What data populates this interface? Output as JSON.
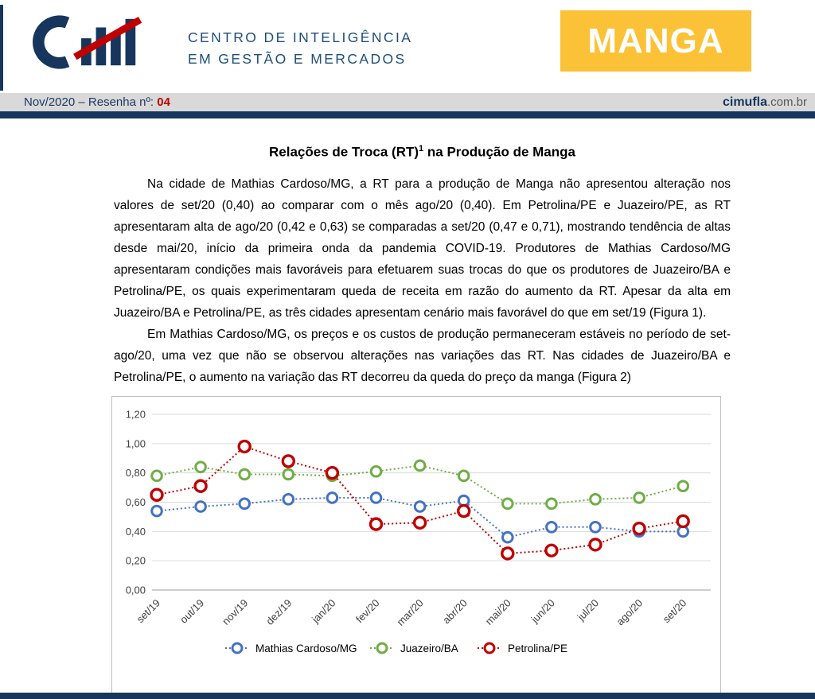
{
  "header": {
    "org_line1": "CENTRO DE INTELIGÊNCIA",
    "org_line2": "EM GESTÃO E MERCADOS",
    "badge": "MANGA",
    "navy_color": "#17365D",
    "badge_color": "#FCC237",
    "accent_red": "#C00000"
  },
  "subheader": {
    "issue_label": "Nov/2020 – Resenha nº: ",
    "issue_number": "04",
    "site_bold": "cimufla",
    "site_rest": ".com.br"
  },
  "article": {
    "title_pre": "Relações de Troca (RT)",
    "title_sup": "1",
    "title_post": " na Produção de Manga",
    "paragraphs": [
      "Na cidade de Mathias Cardoso/MG, a RT para a produção de Manga não apresentou alteração nos valores de set/20 (0,40) ao comparar com o mês ago/20 (0,40). Em Petrolina/PE e Juazeiro/PE, as RT apresentaram alta de ago/20 (0,42 e 0,63) se comparadas a set/20 (0,47 e 0,71), mostrando tendência de altas desde mai/20, início da primeira onda da pandemia COVID-19. Produtores de Mathias Cardoso/MG apresentaram condições mais favoráveis para efetuarem suas trocas do que os produtores de Juazeiro/BA e Petrolina/PE, os quais experimentaram queda de receita em razão do aumento da RT. Apesar da alta em Juazeiro/BA e Petrolina/PE, as três cidades apresentam cenário mais favorável do que em set/19 (Figura 1).",
      "Em Mathias Cardoso/MG, os preços e os custos de produção permaneceram estáveis no período de set-ago/20, uma vez que não se observou alterações nas variações das RT. Nas cidades de Juazeiro/BA e Petrolina/PE, o aumento na variação das RT decorreu da queda do preço da manga (Figura 2)"
    ]
  },
  "chart_data": {
    "type": "line",
    "title": "",
    "categories": [
      "set/19",
      "out/19",
      "nov/19",
      "dez/19",
      "jan/20",
      "fev/20",
      "mar/20",
      "abr/20",
      "mai/20",
      "jun/20",
      "jul/20",
      "ago/20",
      "set/20"
    ],
    "y_ticks": [
      "0,00",
      "0,20",
      "0,40",
      "0,60",
      "0,80",
      "1,00",
      "1,20"
    ],
    "ylim": [
      0,
      1.2
    ],
    "grid": true,
    "legend_position": "bottom",
    "line_style": "dotted",
    "marker": "open-circle",
    "series": [
      {
        "name": "Mathias Cardoso/MG",
        "color": "#4472C4",
        "marker_r": 6.3,
        "marker_w": 3,
        "values": [
          0.54,
          0.57,
          0.59,
          0.62,
          0.63,
          0.63,
          0.57,
          0.61,
          0.36,
          0.43,
          0.43,
          0.4,
          0.4
        ]
      },
      {
        "name": "Juazeiro/BA",
        "color": "#70AD47",
        "marker_r": 6.3,
        "marker_w": 3,
        "values": [
          0.78,
          0.84,
          0.79,
          0.79,
          0.78,
          0.81,
          0.85,
          0.78,
          0.59,
          0.59,
          0.62,
          0.63,
          0.71
        ]
      },
      {
        "name": "Petrolina/PE",
        "color": "#C00000",
        "marker_r": 7,
        "marker_w": 3.4,
        "values": [
          0.65,
          0.71,
          0.98,
          0.88,
          0.8,
          0.45,
          0.46,
          0.54,
          0.25,
          0.27,
          0.31,
          0.42,
          0.47
        ]
      }
    ]
  }
}
